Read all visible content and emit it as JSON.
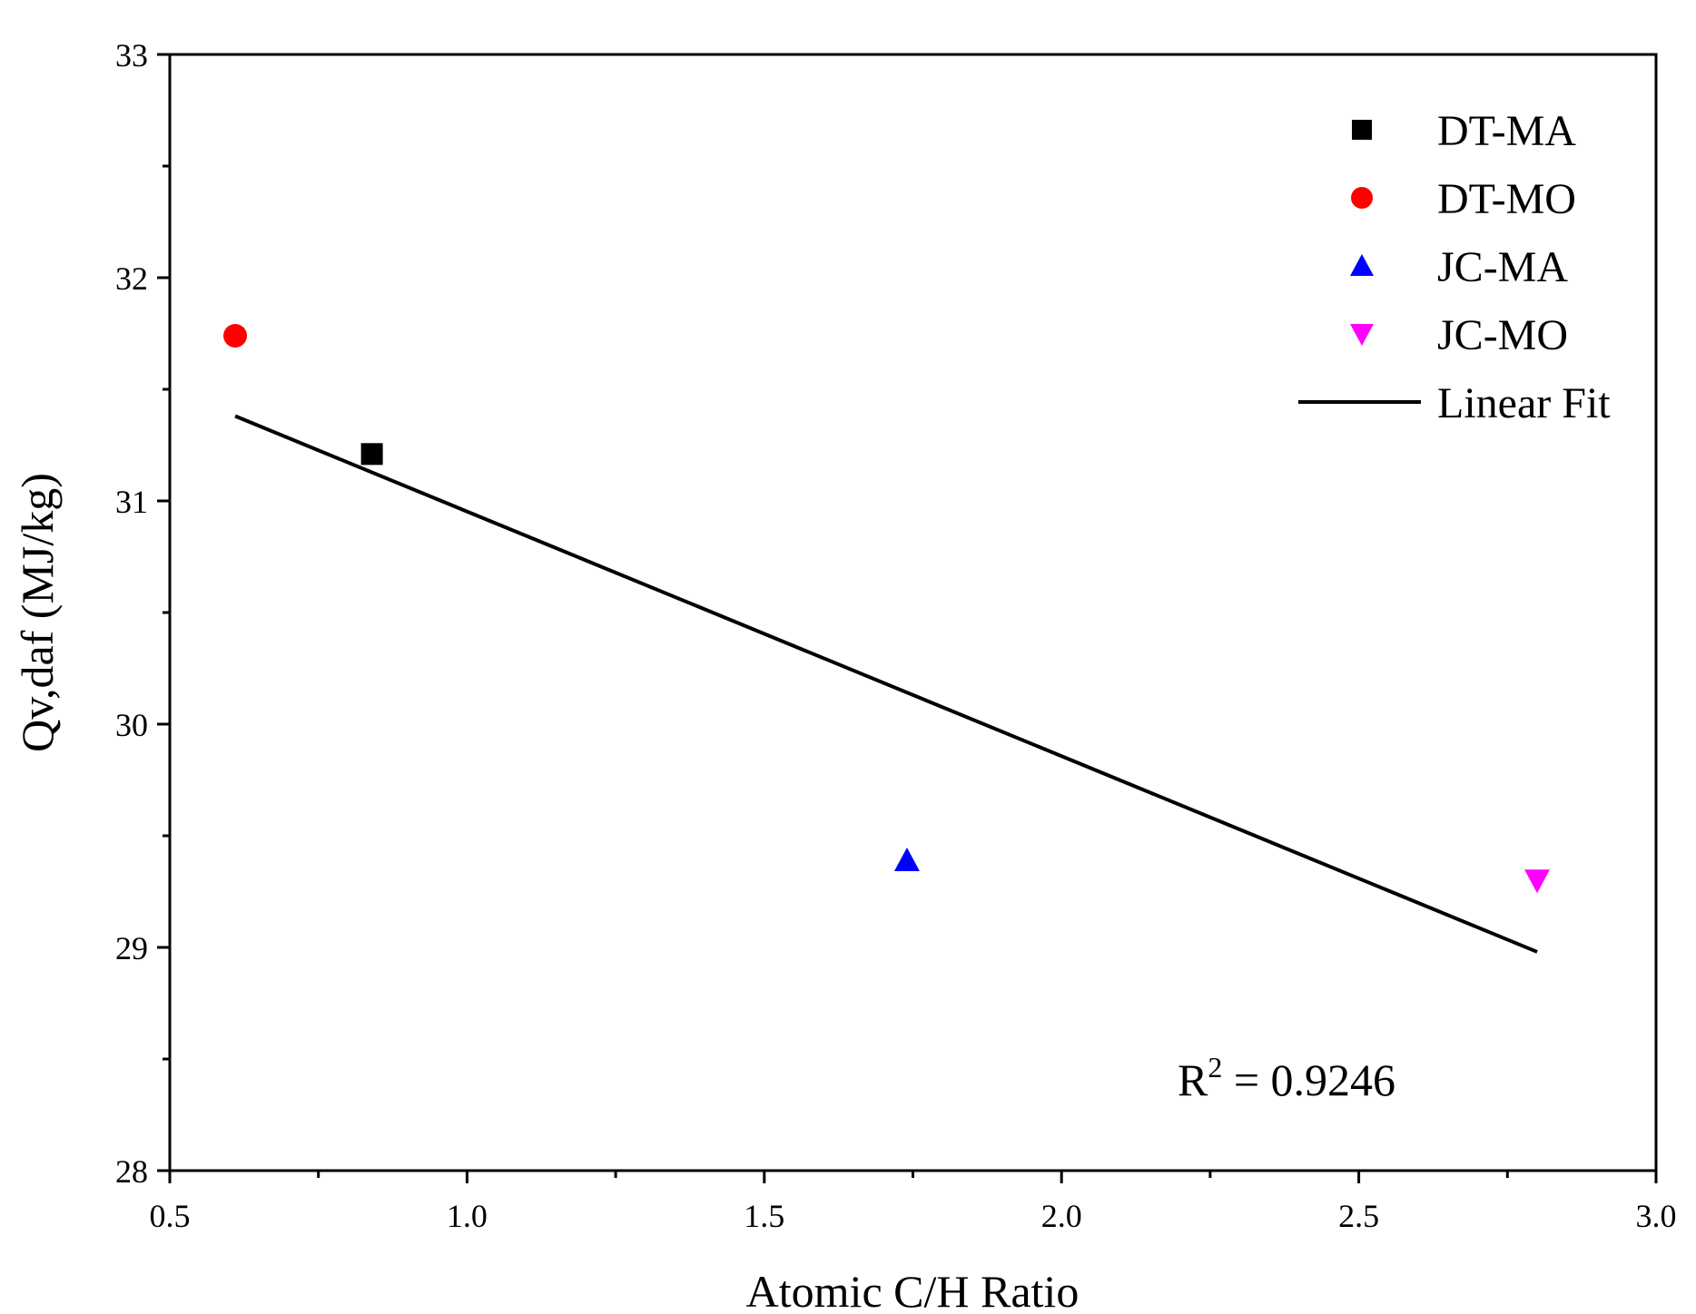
{
  "chart_data": {
    "type": "scatter",
    "title": "",
    "xlabel": "Atomic C/H Ratio",
    "ylabel": "Qv,daf (MJ/kg)",
    "xlim": [
      0.5,
      3.0
    ],
    "ylim": [
      28,
      33
    ],
    "x_ticks": [
      "0.5",
      "1.0",
      "1.5",
      "2.0",
      "2.5",
      "3.0"
    ],
    "y_ticks": [
      "28",
      "29",
      "30",
      "31",
      "32",
      "33"
    ],
    "series": [
      {
        "name": "DT-MA",
        "marker": "square",
        "color": "#000000",
        "x": [
          0.84
        ],
        "y": [
          31.21
        ]
      },
      {
        "name": "DT-MO",
        "marker": "circle",
        "color": "#ff0000",
        "x": [
          0.61
        ],
        "y": [
          31.74
        ]
      },
      {
        "name": "JC-MA",
        "marker": "triangle-up",
        "color": "#0000ff",
        "x": [
          1.74
        ],
        "y": [
          29.39
        ]
      },
      {
        "name": "JC-MO",
        "marker": "triangle-down",
        "color": "#ff00ff",
        "x": [
          2.8
        ],
        "y": [
          29.3
        ]
      }
    ],
    "fit": {
      "name": "Linear Fit",
      "color": "#000000",
      "x": [
        0.61,
        2.8
      ],
      "y": [
        31.38,
        28.98
      ]
    },
    "annotation": {
      "base": "R",
      "sup": "2",
      "text": " = 0.9246"
    },
    "legend_position": "top-right"
  }
}
